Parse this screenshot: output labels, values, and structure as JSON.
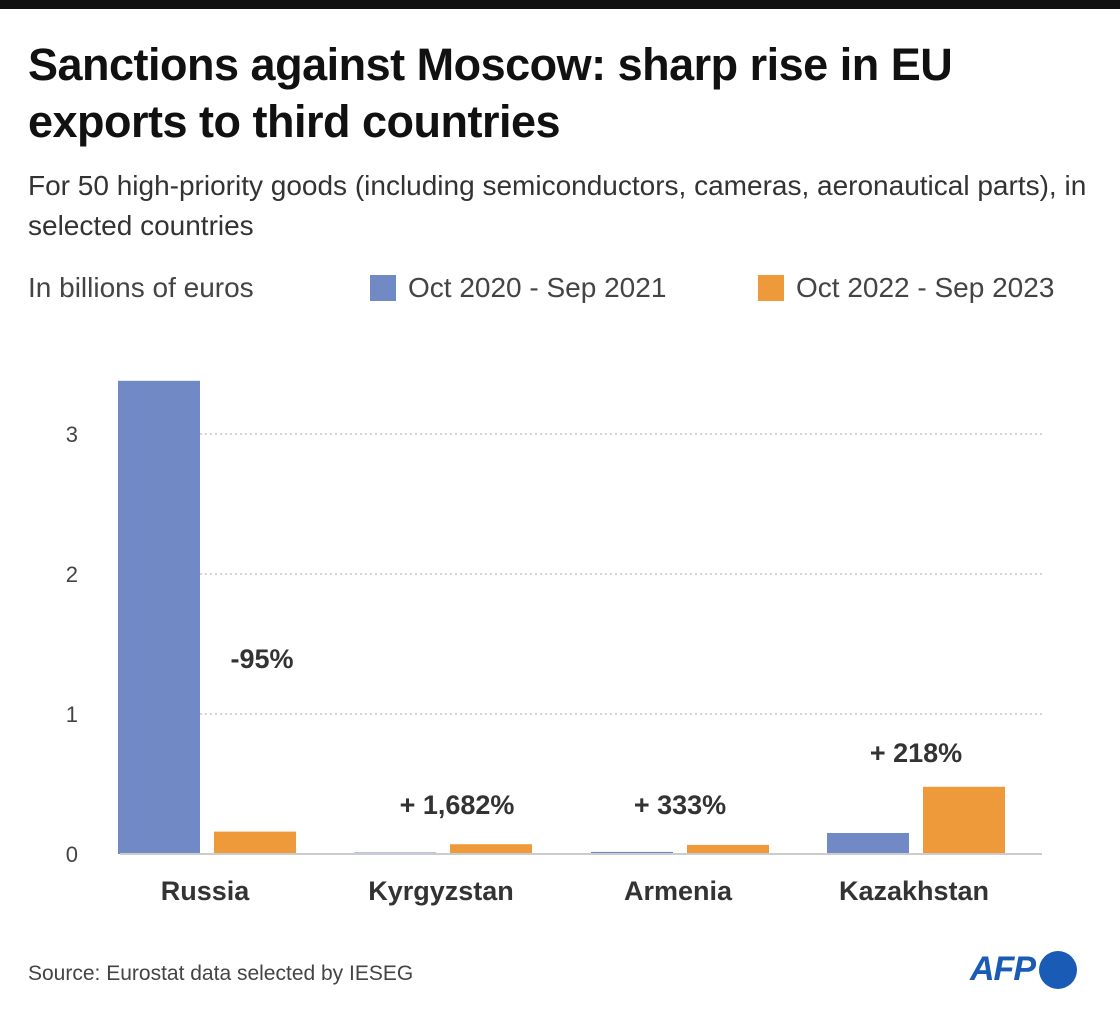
{
  "title": "Sanctions against Moscow: sharp rise in EU exports to third countries",
  "subtitle": "For 50 high-priority goods (including semiconductors, cameras, aeronautical parts), in selected countries",
  "source": "Source: Eurostat data selected by IESEG",
  "logo": "AFP",
  "chart_data": {
    "type": "bar",
    "ylabel": "In billions of euros",
    "categories": [
      "Russia",
      "Kyrgyzstan",
      "Armenia",
      "Kazakhstan"
    ],
    "series": [
      {
        "name": "Oct 2020 - Sep 2021",
        "color": "#7189c4",
        "values": [
          3.38,
          0.004,
          0.015,
          0.15
        ]
      },
      {
        "name": "Oct 2022 - Sep 2023",
        "color": "#ee9a3a",
        "values": [
          0.16,
          0.07,
          0.065,
          0.48
        ]
      }
    ],
    "annotations": [
      "-95%",
      "+ 1,682%",
      "+ 333%",
      "+ 218%"
    ],
    "yticks": [
      0,
      1,
      2,
      3
    ],
    "ylim": [
      0,
      3.4
    ],
    "grid": true,
    "legend": "top"
  }
}
